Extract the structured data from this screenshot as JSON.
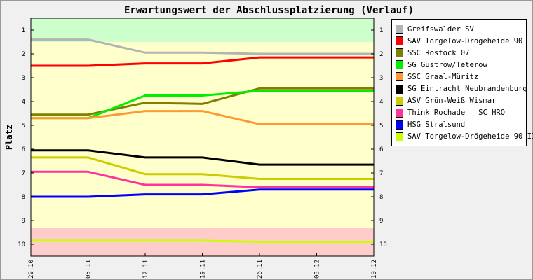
{
  "chart_data": {
    "type": "line",
    "title": "Erwartungswert der Abschlussplatzierung (Verlauf)",
    "ylabel": "Platz",
    "xlabel": "",
    "x": [
      "29.10",
      "05.11",
      "12.11",
      "19.11",
      "26.11",
      "03.12",
      "10.12"
    ],
    "y_ticks": [
      1,
      2,
      3,
      4,
      5,
      6,
      7,
      8,
      9,
      10
    ],
    "ylim": [
      0.5,
      10.5
    ],
    "y_inverted": true,
    "grid": false,
    "legend_position": "right",
    "bands": [
      {
        "from": 0.5,
        "to": 1.5,
        "color": "#ccffcc"
      },
      {
        "from": 1.5,
        "to": 9.3,
        "color": "#ffffcc"
      },
      {
        "from": 9.3,
        "to": 10.5,
        "color": "#ffcccc"
      }
    ],
    "series": [
      {
        "name": "Greifswalder SV",
        "color": "#b4b4b4",
        "values": [
          1.4,
          1.4,
          1.95,
          1.95,
          2.0,
          2.0,
          2.0
        ]
      },
      {
        "name": "SAV Torgelow-Drögeheide 90",
        "color": "#ff0000",
        "values": [
          2.5,
          2.5,
          2.4,
          2.4,
          2.15,
          2.15,
          2.15
        ]
      },
      {
        "name": "SSC Rostock 07",
        "color": "#808000",
        "values": [
          4.55,
          4.55,
          4.05,
          4.1,
          3.45,
          3.45,
          3.45
        ]
      },
      {
        "name": "SG Güstrow/Teterow",
        "color": "#00ee00",
        "values": [
          4.7,
          4.7,
          3.75,
          3.75,
          3.55,
          3.55,
          3.55
        ]
      },
      {
        "name": "SSC Graal-Müritz",
        "color": "#ff9933",
        "values": [
          4.7,
          4.7,
          4.4,
          4.4,
          4.95,
          4.95,
          4.95
        ]
      },
      {
        "name": "SG Eintracht Neubrandenburg",
        "color": "#000000",
        "values": [
          6.05,
          6.05,
          6.35,
          6.35,
          6.65,
          6.65,
          6.65
        ]
      },
      {
        "name": "ASV Grün-Weiß Wismar",
        "color": "#cccc00",
        "values": [
          6.35,
          6.35,
          7.05,
          7.05,
          7.25,
          7.25,
          7.25
        ]
      },
      {
        "name": "Think Rochade   SC HRO",
        "color": "#ff3399",
        "values": [
          6.95,
          6.95,
          7.5,
          7.5,
          7.6,
          7.6,
          7.6
        ]
      },
      {
        "name": "HSG Stralsund",
        "color": "#0000ff",
        "values": [
          8.0,
          8.0,
          7.9,
          7.9,
          7.7,
          7.7,
          7.7
        ]
      },
      {
        "name": "SAV Torgelow-Drögeheide 90 II",
        "color": "#ccff00",
        "values": [
          9.85,
          9.85,
          9.85,
          9.85,
          9.9,
          9.9,
          9.9
        ]
      }
    ]
  }
}
